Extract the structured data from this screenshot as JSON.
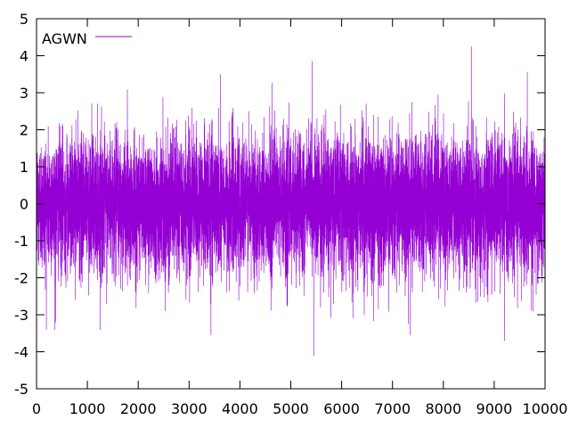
{
  "chart_data": {
    "type": "line",
    "title": "",
    "xlabel": "",
    "ylabel": "",
    "xlim": [
      0,
      10000
    ],
    "ylim": [
      -5,
      5
    ],
    "x_ticks": [
      0,
      1000,
      2000,
      3000,
      4000,
      5000,
      6000,
      7000,
      8000,
      9000,
      10000
    ],
    "y_ticks": [
      -5,
      -4,
      -3,
      -2,
      -1,
      0,
      1,
      2,
      3,
      4,
      5
    ],
    "x_tick_labels": [
      "0",
      "1000",
      "2000",
      "3000",
      "4000",
      "5000",
      "6000",
      "7000",
      "8000",
      "9000",
      "10000"
    ],
    "y_tick_labels": [
      "-5",
      "-4",
      "-3",
      "-2",
      "-1",
      "0",
      "1",
      "2",
      "3",
      "4",
      "5"
    ],
    "grid": false,
    "legend_position": "top-left",
    "series": [
      {
        "name": "AGWN",
        "color": "#9400d3",
        "n_points": 10000,
        "distribution": "gaussian white noise",
        "mean": 0,
        "std_dev": 0.9,
        "notable_points": [
          {
            "x": 8550,
            "y": 4.25
          },
          {
            "x": 5420,
            "y": 3.85
          },
          {
            "x": 9650,
            "y": 3.55
          },
          {
            "x": 3620,
            "y": 3.5
          },
          {
            "x": 5450,
            "y": -4.1
          },
          {
            "x": 9200,
            "y": -3.7
          },
          {
            "x": 7350,
            "y": -3.55
          },
          {
            "x": 3430,
            "y": -3.55
          },
          {
            "x": 380,
            "y": -3.2
          }
        ]
      }
    ]
  }
}
